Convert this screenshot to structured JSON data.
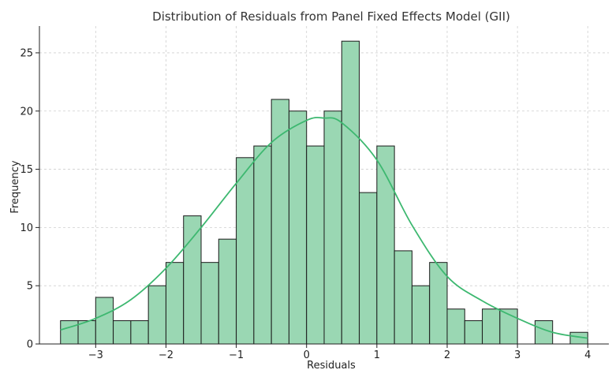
{
  "chart_data": {
    "type": "bar",
    "subtype": "histogram",
    "title": "Distribution of Residuals from Panel Fixed Effects Model (GII)",
    "xlabel": "Residuals",
    "ylabel": "Frequency",
    "xlim": [
      -3.8,
      4.3
    ],
    "ylim": [
      0,
      27.3
    ],
    "xticks": [
      -3,
      -2,
      -1,
      0,
      1,
      2,
      3,
      4
    ],
    "xtick_labels": [
      "−3",
      "−2",
      "−1",
      "0",
      "1",
      "2",
      "3",
      "4"
    ],
    "yticks": [
      0,
      5,
      10,
      15,
      20,
      25
    ],
    "ytick_labels": [
      "0",
      "5",
      "10",
      "15",
      "20",
      "25"
    ],
    "grid": true,
    "bin_start": -3.5,
    "bin_width": 0.25,
    "values": [
      2,
      2,
      4,
      2,
      2,
      5,
      7,
      11,
      7,
      9,
      16,
      17,
      21,
      20,
      17,
      20,
      26,
      13,
      17,
      8,
      5,
      7,
      3,
      2,
      3,
      3,
      0,
      2,
      0,
      1
    ],
    "bar_color": "#9ad7b3",
    "bar_edge_color": "#1a1a1a",
    "kde": {
      "color": "#3db870",
      "x": [
        -3.5,
        -3.0,
        -2.5,
        -2.0,
        -1.5,
        -1.0,
        -0.5,
        0.0,
        0.25,
        0.5,
        1.0,
        1.5,
        2.0,
        2.5,
        3.0,
        3.5,
        4.0
      ],
      "y": [
        1.2,
        2.2,
        3.8,
        6.5,
        10.0,
        13.8,
        17.3,
        19.2,
        19.4,
        19.0,
        15.8,
        10.2,
        5.8,
        3.7,
        2.2,
        1.0,
        0.5
      ]
    }
  }
}
